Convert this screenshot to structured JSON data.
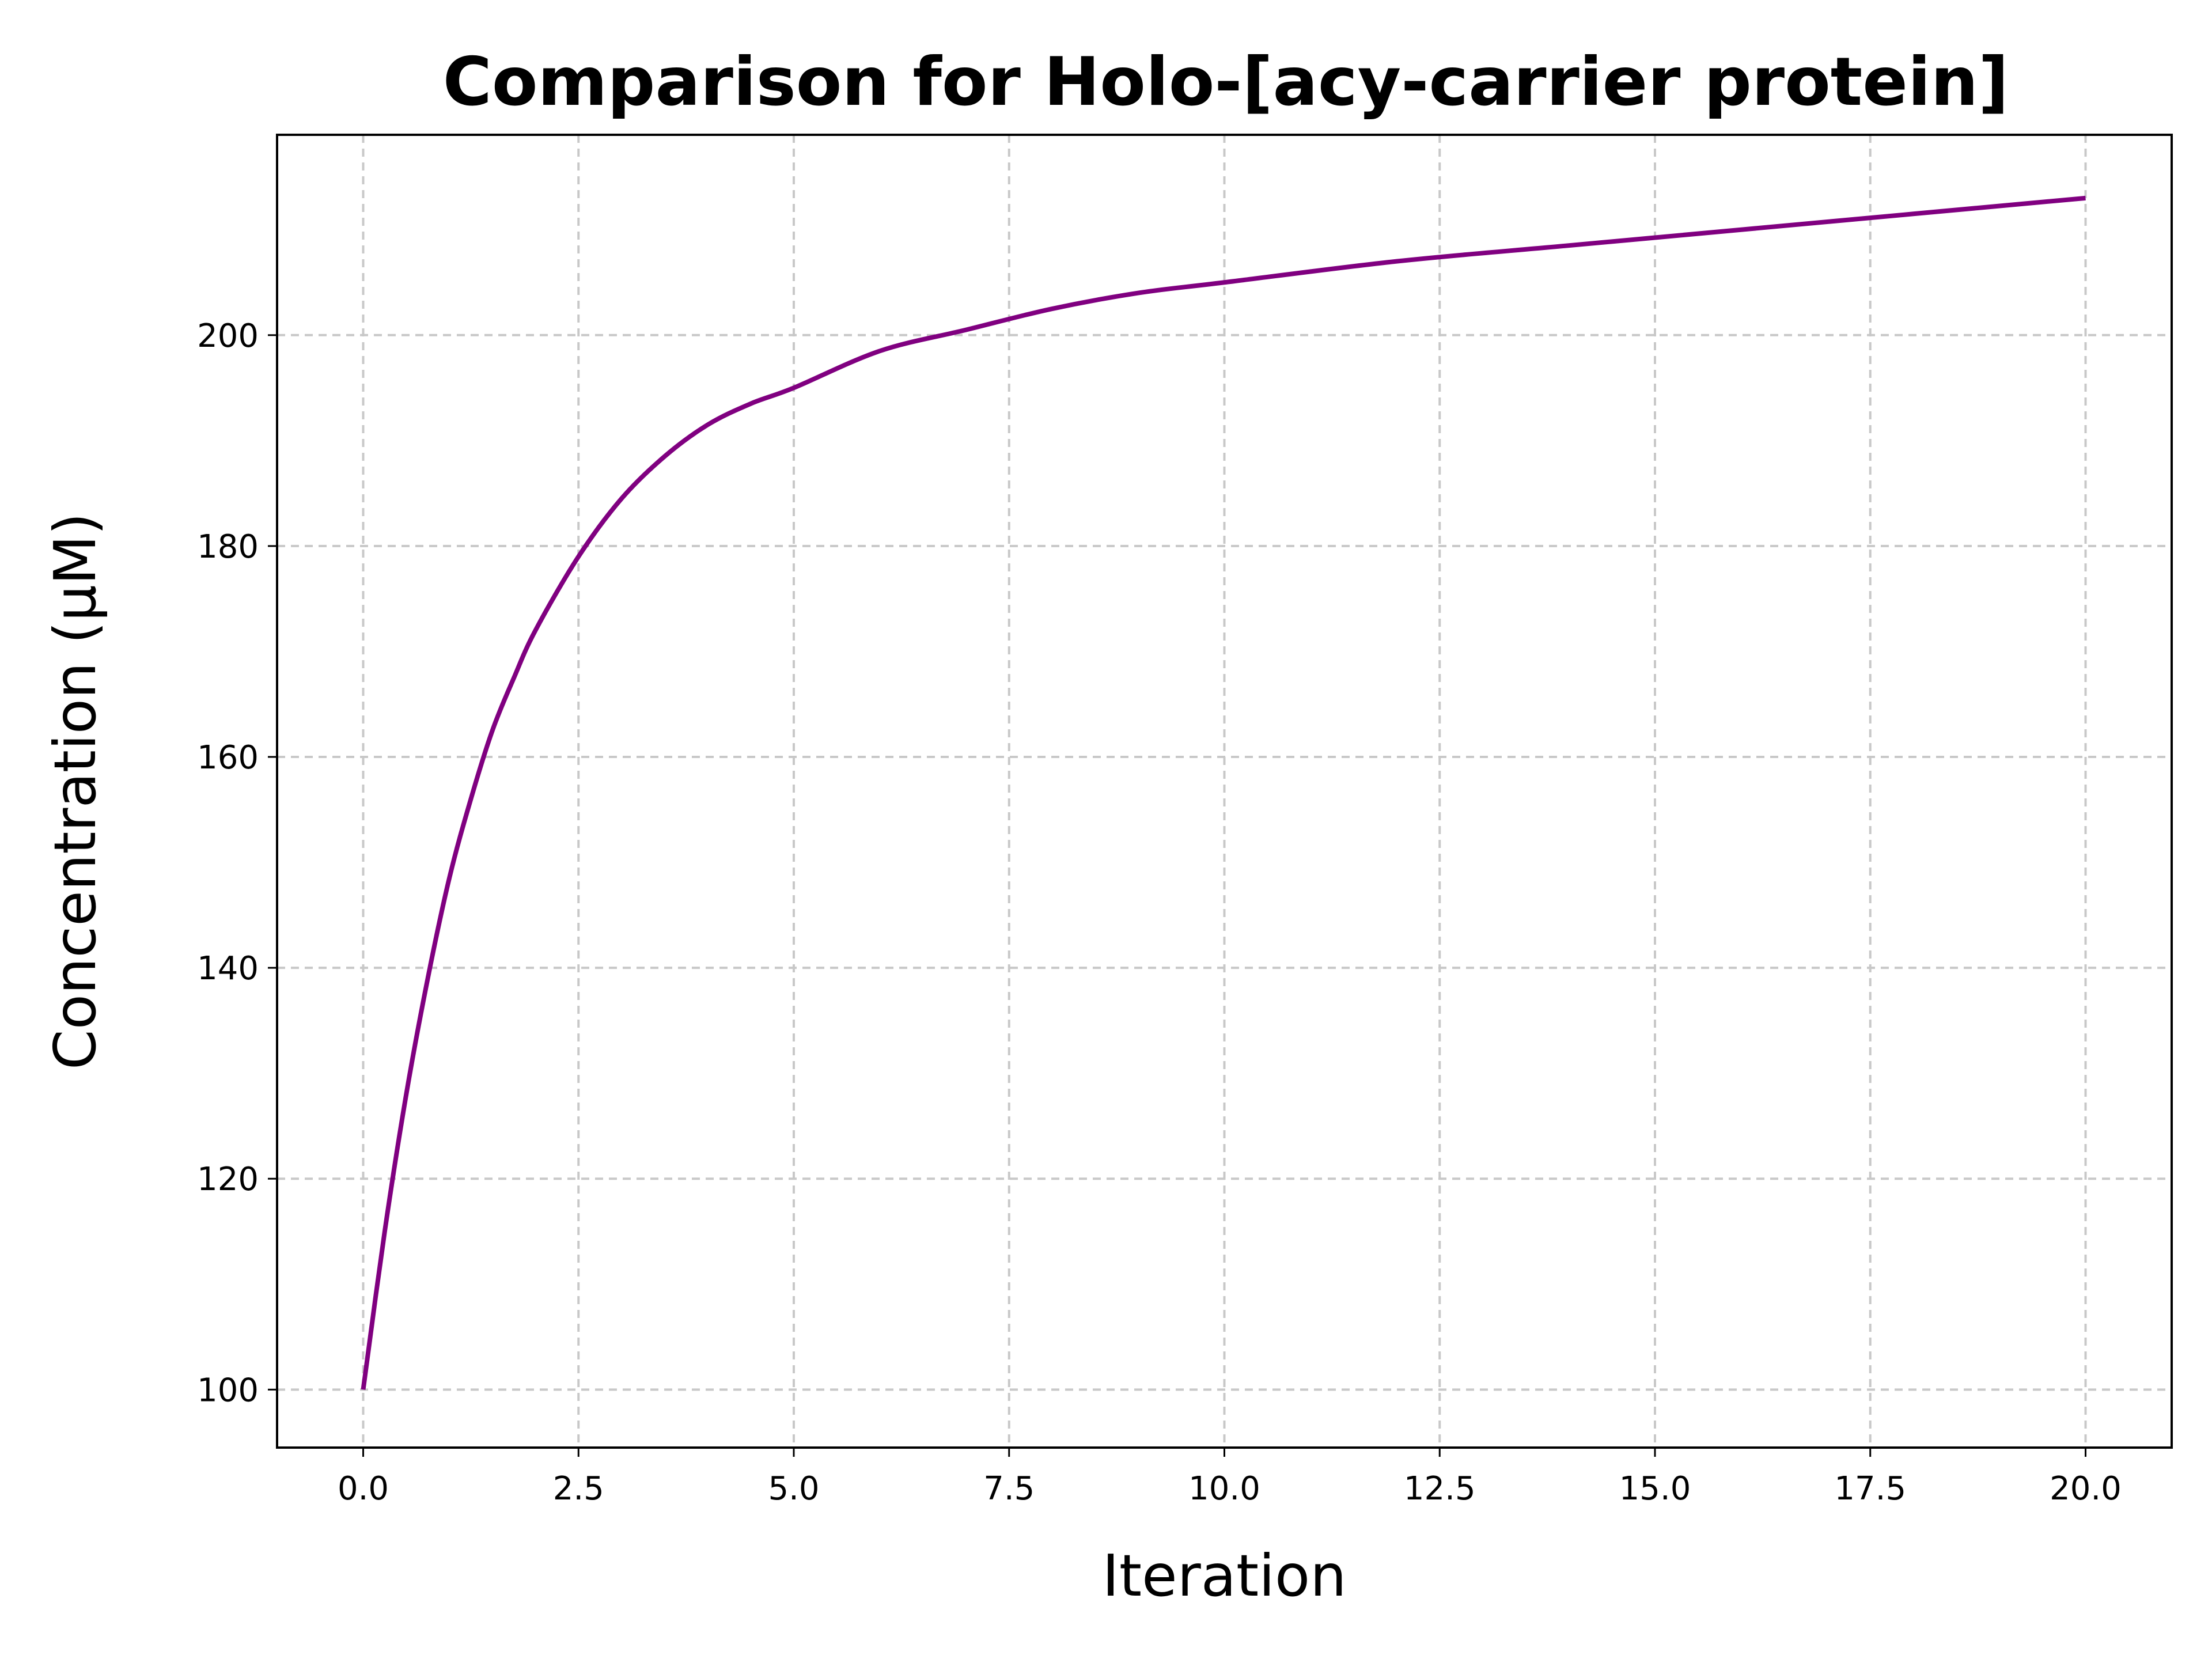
{
  "chart_data": {
    "type": "line",
    "title": "Comparison for Holo-[acy-carrier protein]",
    "xlabel": "Iteration",
    "ylabel": "Concentration (μM)",
    "xlim": [
      -1.0,
      21.0
    ],
    "ylim": [
      94.5,
      219.0
    ],
    "x_ticks": [
      0.0,
      2.5,
      5.0,
      7.5,
      10.0,
      12.5,
      15.0,
      17.5,
      20.0
    ],
    "x_tick_labels": [
      "0.0",
      "2.5",
      "5.0",
      "7.5",
      "10.0",
      "12.5",
      "15.0",
      "17.5",
      "20.0"
    ],
    "y_ticks": [
      100,
      120,
      140,
      160,
      180,
      200
    ],
    "y_tick_labels": [
      "100",
      "120",
      "140",
      "160",
      "180",
      "200"
    ],
    "grid": true,
    "series": [
      {
        "color": "#800080",
        "x": [
          0,
          0.25,
          0.5,
          0.75,
          1,
          1.25,
          1.5,
          1.75,
          2,
          2.5,
          3,
          3.5,
          4,
          4.5,
          5,
          6,
          7,
          8,
          9,
          10,
          12,
          14,
          16,
          18,
          20
        ],
        "y": [
          100,
          115,
          128,
          139,
          148.5,
          156,
          162.5,
          167.5,
          172,
          179,
          184.5,
          188.5,
          191.5,
          193.5,
          195,
          198.5,
          200.5,
          202.5,
          204,
          205,
          207,
          208.5,
          210,
          211.5,
          213
        ]
      }
    ]
  }
}
